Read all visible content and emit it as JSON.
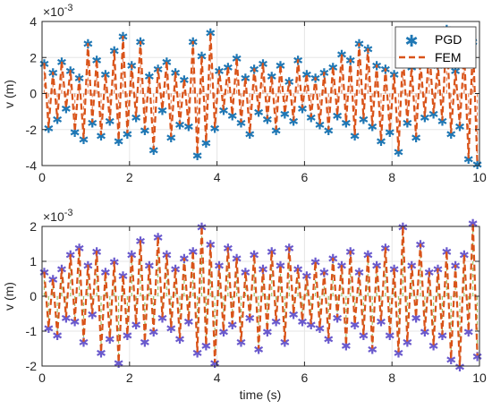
{
  "colors": {
    "pgd": "#1f77b4",
    "fem": "#d95319",
    "pgd_bottom": "#6a5acd",
    "fem_bottom_alt": "#77ac30",
    "grid": "#e6e6e6",
    "axis": "#262626"
  },
  "chart_data": [
    {
      "type": "line",
      "title": "",
      "xlabel": "",
      "ylabel": "v (m)",
      "exponent_label": "×10",
      "exponent_power": "-3",
      "xlim": [
        0,
        10
      ],
      "ylim": [
        -4,
        4
      ],
      "xticks": [
        "0",
        "2",
        "4",
        "6",
        "8",
        "10"
      ],
      "yticks": [
        "-4",
        "-2",
        "0",
        "2",
        "4"
      ],
      "grid": true,
      "legend_position": "top-right",
      "legend": [
        "PGD",
        "FEM"
      ],
      "series": [
        {
          "name": "PGD",
          "style": "markers-asterisk",
          "x": [
            0.05,
            0.15,
            0.25,
            0.35,
            0.45,
            0.55,
            0.65,
            0.75,
            0.85,
            0.95,
            1.05,
            1.15,
            1.25,
            1.35,
            1.45,
            1.55,
            1.65,
            1.75,
            1.85,
            1.95,
            2.05,
            2.15,
            2.25,
            2.35,
            2.45,
            2.55,
            2.65,
            2.75,
            2.85,
            2.95,
            3.05,
            3.15,
            3.25,
            3.35,
            3.45,
            3.55,
            3.65,
            3.75,
            3.85,
            3.95,
            4.05,
            4.15,
            4.25,
            4.35,
            4.45,
            4.55,
            4.65,
            4.75,
            4.85,
            4.95,
            5.05,
            5.15,
            5.25,
            5.35,
            5.45,
            5.55,
            5.65,
            5.75,
            5.85,
            5.95,
            6.05,
            6.15,
            6.25,
            6.35,
            6.45,
            6.55,
            6.65,
            6.75,
            6.85,
            6.95,
            7.05,
            7.15,
            7.25,
            7.35,
            7.45,
            7.55,
            7.65,
            7.75,
            7.85,
            7.95,
            8.05,
            8.15,
            8.25,
            8.35,
            8.45,
            8.55,
            8.65,
            8.75,
            8.85,
            8.95,
            9.05,
            9.15,
            9.25,
            9.35,
            9.45,
            9.55,
            9.65,
            9.75,
            9.85,
            9.95
          ],
          "y": [
            1.7,
            -1.9,
            1.2,
            -1.4,
            1.8,
            -0.8,
            1.3,
            -2.1,
            0.9,
            -2.5,
            2.8,
            -1.6,
            1.9,
            -2.3,
            1.1,
            -1.5,
            2.4,
            -2.6,
            3.2,
            -2.2,
            1.6,
            -1.3,
            2.9,
            -2.0,
            1.0,
            -3.1,
            1.4,
            -0.9,
            1.8,
            -2.4,
            1.2,
            -1.7,
            0.8,
            -1.8,
            2.9,
            -3.4,
            2.1,
            -2.7,
            3.4,
            -1.9,
            1.3,
            -0.9,
            1.5,
            -1.2,
            2.0,
            -1.6,
            0.9,
            -2.2,
            1.4,
            -1.0,
            1.7,
            -1.4,
            1.0,
            -2.0,
            1.6,
            -1.1,
            0.7,
            -1.5,
            1.9,
            -0.8,
            1.1,
            -1.3,
            0.9,
            -1.7,
            1.2,
            -2.0,
            1.5,
            -1.2,
            2.2,
            -1.6,
            1.9,
            -2.3,
            2.8,
            -1.4,
            2.5,
            -1.8,
            1.6,
            -2.6,
            1.4,
            -2.1,
            1.1,
            -3.2,
            2.2,
            -1.6,
            1.5,
            -2.4,
            1.8,
            -1.3,
            2.6,
            -1.1,
            1.6,
            -1.5,
            3.6,
            -2.2,
            1.3,
            -1.8,
            2.3,
            -3.6,
            2.9,
            -3.9
          ]
        },
        {
          "name": "FEM",
          "style": "dashed-line",
          "x": [
            0.05,
            0.15,
            0.25,
            0.35,
            0.45,
            0.55,
            0.65,
            0.75,
            0.85,
            0.95,
            1.05,
            1.15,
            1.25,
            1.35,
            1.45,
            1.55,
            1.65,
            1.75,
            1.85,
            1.95,
            2.05,
            2.15,
            2.25,
            2.35,
            2.45,
            2.55,
            2.65,
            2.75,
            2.85,
            2.95,
            3.05,
            3.15,
            3.25,
            3.35,
            3.45,
            3.55,
            3.65,
            3.75,
            3.85,
            3.95,
            4.05,
            4.15,
            4.25,
            4.35,
            4.45,
            4.55,
            4.65,
            4.75,
            4.85,
            4.95,
            5.05,
            5.15,
            5.25,
            5.35,
            5.45,
            5.55,
            5.65,
            5.75,
            5.85,
            5.95,
            6.05,
            6.15,
            6.25,
            6.35,
            6.45,
            6.55,
            6.65,
            6.75,
            6.85,
            6.95,
            7.05,
            7.15,
            7.25,
            7.35,
            7.45,
            7.55,
            7.65,
            7.75,
            7.85,
            7.95,
            8.05,
            8.15,
            8.25,
            8.35,
            8.45,
            8.55,
            8.65,
            8.75,
            8.85,
            8.95,
            9.05,
            9.15,
            9.25,
            9.35,
            9.45,
            9.55,
            9.65,
            9.75,
            9.85,
            9.95
          ],
          "y": [
            1.7,
            -1.9,
            1.2,
            -1.4,
            1.8,
            -0.8,
            1.3,
            -2.1,
            0.9,
            -2.5,
            2.8,
            -1.6,
            1.9,
            -2.3,
            1.1,
            -1.5,
            2.4,
            -2.6,
            3.2,
            -2.2,
            1.6,
            -1.3,
            2.9,
            -2.0,
            1.0,
            -3.1,
            1.4,
            -0.9,
            1.8,
            -2.4,
            1.2,
            -1.7,
            0.8,
            -1.8,
            2.9,
            -3.4,
            2.1,
            -2.7,
            3.4,
            -1.9,
            1.3,
            -0.9,
            1.5,
            -1.2,
            2.0,
            -1.6,
            0.9,
            -2.2,
            1.4,
            -1.0,
            1.7,
            -1.4,
            1.0,
            -2.0,
            1.6,
            -1.1,
            0.7,
            -1.5,
            1.9,
            -0.8,
            1.1,
            -1.3,
            0.9,
            -1.7,
            1.2,
            -2.0,
            1.5,
            -1.2,
            2.2,
            -1.6,
            1.9,
            -2.3,
            2.8,
            -1.4,
            2.5,
            -1.8,
            1.6,
            -2.6,
            1.4,
            -2.1,
            1.1,
            -3.2,
            2.2,
            -1.6,
            1.5,
            -2.4,
            1.8,
            -1.3,
            2.6,
            -1.1,
            1.6,
            -1.5,
            3.6,
            -2.2,
            1.3,
            -1.8,
            2.3,
            -3.6,
            2.9,
            -3.9
          ]
        }
      ]
    },
    {
      "type": "line",
      "title": "",
      "xlabel": "time (s)",
      "ylabel": "v (m)",
      "exponent_label": "×10",
      "exponent_power": "-3",
      "xlim": [
        0,
        10
      ],
      "ylim": [
        -2,
        2
      ],
      "xticks": [
        "0",
        "2",
        "4",
        "6",
        "8",
        "10"
      ],
      "yticks": [
        "-2",
        "-1",
        "0",
        "1",
        "2"
      ],
      "grid": true,
      "series": [
        {
          "style": "markers-asterisk",
          "x": [
            0.05,
            0.15,
            0.25,
            0.35,
            0.45,
            0.55,
            0.65,
            0.75,
            0.85,
            0.95,
            1.05,
            1.15,
            1.25,
            1.35,
            1.45,
            1.55,
            1.65,
            1.75,
            1.85,
            1.95,
            2.05,
            2.15,
            2.25,
            2.35,
            2.45,
            2.55,
            2.65,
            2.75,
            2.85,
            2.95,
            3.05,
            3.15,
            3.25,
            3.35,
            3.45,
            3.55,
            3.65,
            3.75,
            3.85,
            3.95,
            4.05,
            4.15,
            4.25,
            4.35,
            4.45,
            4.55,
            4.65,
            4.75,
            4.85,
            4.95,
            5.05,
            5.15,
            5.25,
            5.35,
            5.45,
            5.55,
            5.65,
            5.75,
            5.85,
            5.95,
            6.05,
            6.15,
            6.25,
            6.35,
            6.45,
            6.55,
            6.65,
            6.75,
            6.85,
            6.95,
            7.05,
            7.15,
            7.25,
            7.35,
            7.45,
            7.55,
            7.65,
            7.75,
            7.85,
            7.95,
            8.05,
            8.15,
            8.25,
            8.35,
            8.45,
            8.55,
            8.65,
            8.75,
            8.85,
            8.95,
            9.05,
            9.15,
            9.25,
            9.35,
            9.45,
            9.55,
            9.65,
            9.75,
            9.85,
            9.95
          ],
          "y": [
            0.7,
            -0.9,
            0.5,
            -1.1,
            0.8,
            -0.6,
            1.2,
            -0.7,
            1.4,
            -1.3,
            0.9,
            -0.5,
            1.3,
            -1.6,
            0.7,
            -1.2,
            1.0,
            -1.9,
            0.6,
            -1.1,
            1.2,
            -0.8,
            1.6,
            -1.3,
            0.9,
            -1.0,
            1.7,
            -0.6,
            1.2,
            -0.9,
            0.8,
            -1.2,
            1.1,
            -0.7,
            1.3,
            -1.6,
            2.0,
            -1.4,
            1.5,
            -1.9,
            0.9,
            -1.0,
            1.4,
            -0.8,
            1.1,
            -1.3,
            0.7,
            -0.6,
            1.2,
            -1.5,
            0.8,
            -1.0,
            1.3,
            -0.7,
            0.9,
            -1.3,
            1.4,
            -0.5,
            0.8,
            -0.7,
            0.6,
            -0.8,
            1.0,
            -0.9,
            0.7,
            -1.2,
            1.1,
            -0.6,
            0.9,
            -1.4,
            1.3,
            -0.8,
            0.7,
            -1.1,
            1.2,
            -1.5,
            0.9,
            -0.7,
            1.4,
            -1.1,
            0.8,
            -1.6,
            2.0,
            -1.3,
            0.9,
            -0.6,
            1.5,
            -1.0,
            0.7,
            -1.4,
            0.8,
            -1.1,
            1.3,
            -1.8,
            0.9,
            -2.0,
            1.2,
            -1.0,
            2.1,
            -1.7
          ]
        },
        {
          "style": "dashed-line",
          "x": [
            0.05,
            0.15,
            0.25,
            0.35,
            0.45,
            0.55,
            0.65,
            0.75,
            0.85,
            0.95,
            1.05,
            1.15,
            1.25,
            1.35,
            1.45,
            1.55,
            1.65,
            1.75,
            1.85,
            1.95,
            2.05,
            2.15,
            2.25,
            2.35,
            2.45,
            2.55,
            2.65,
            2.75,
            2.85,
            2.95,
            3.05,
            3.15,
            3.25,
            3.35,
            3.45,
            3.55,
            3.65,
            3.75,
            3.85,
            3.95,
            4.05,
            4.15,
            4.25,
            4.35,
            4.45,
            4.55,
            4.65,
            4.75,
            4.85,
            4.95,
            5.05,
            5.15,
            5.25,
            5.35,
            5.45,
            5.55,
            5.65,
            5.75,
            5.85,
            5.95,
            6.05,
            6.15,
            6.25,
            6.35,
            6.45,
            6.55,
            6.65,
            6.75,
            6.85,
            6.95,
            7.05,
            7.15,
            7.25,
            7.35,
            7.45,
            7.55,
            7.65,
            7.75,
            7.85,
            7.95,
            8.05,
            8.15,
            8.25,
            8.35,
            8.45,
            8.55,
            8.65,
            8.75,
            8.85,
            8.95,
            9.05,
            9.15,
            9.25,
            9.35,
            9.45,
            9.55,
            9.65,
            9.75,
            9.85,
            9.95
          ],
          "y": [
            0.7,
            -0.9,
            0.5,
            -1.1,
            0.8,
            -0.6,
            1.2,
            -0.7,
            1.4,
            -1.3,
            0.9,
            -0.5,
            1.3,
            -1.6,
            0.7,
            -1.2,
            1.0,
            -1.9,
            0.6,
            -1.1,
            1.2,
            -0.8,
            1.6,
            -1.3,
            0.9,
            -1.0,
            1.7,
            -0.6,
            1.2,
            -0.9,
            0.8,
            -1.2,
            1.1,
            -0.7,
            1.3,
            -1.6,
            2.0,
            -1.4,
            1.5,
            -1.9,
            0.9,
            -1.0,
            1.4,
            -0.8,
            1.1,
            -1.3,
            0.7,
            -0.6,
            1.2,
            -1.5,
            0.8,
            -1.0,
            1.3,
            -0.7,
            0.9,
            -1.3,
            1.4,
            -0.5,
            0.8,
            -0.7,
            0.6,
            -0.8,
            1.0,
            -0.9,
            0.7,
            -1.2,
            1.1,
            -0.6,
            0.9,
            -1.4,
            1.3,
            -0.8,
            0.7,
            -1.1,
            1.2,
            -1.5,
            0.9,
            -0.7,
            1.4,
            -1.1,
            0.8,
            -1.6,
            2.0,
            -1.3,
            0.9,
            -0.6,
            1.5,
            -1.0,
            0.7,
            -1.4,
            0.8,
            -1.1,
            1.3,
            -1.8,
            0.9,
            -2.0,
            1.2,
            -1.0,
            2.1,
            -1.7
          ]
        }
      ]
    }
  ]
}
